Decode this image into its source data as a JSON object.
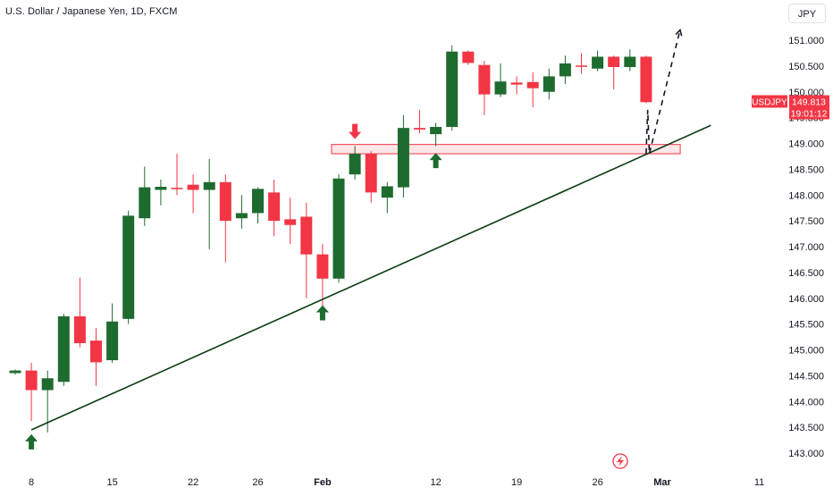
{
  "header": {
    "title": "U.S. Dollar / Japanese Yen, 1D, FXCM",
    "currency_button": "JPY"
  },
  "price_tag": {
    "symbol": "USDJPY",
    "price": "149.813",
    "countdown": "19:01:12",
    "value": 149.813
  },
  "colors": {
    "up": "#1e6b2f",
    "down": "#f23645",
    "trendline": "#0b3d14",
    "zone": "#f23645",
    "arrow_up": "#1e6b2f",
    "arrow_down": "#f23645",
    "axis_text": "#131722"
  },
  "chart_data": {
    "type": "candlestick",
    "title": "U.S. Dollar / Japanese Yen, 1D, FXCM",
    "xlabel": "",
    "ylabel": "",
    "ylim": [
      142.9,
      151.55
    ],
    "grid": false,
    "y_ticks": [
      "151.000",
      "150.500",
      "150.000",
      "149.500",
      "149.000",
      "148.500",
      "148.000",
      "147.500",
      "147.000",
      "146.500",
      "146.000",
      "145.500",
      "145.000",
      "144.500",
      "144.000",
      "143.500",
      "143.000"
    ],
    "x_ticks": [
      {
        "label": "8",
        "index": 1
      },
      {
        "label": "15",
        "index": 6
      },
      {
        "label": "22",
        "index": 11
      },
      {
        "label": "26",
        "index": 15
      },
      {
        "label": "Feb",
        "index": 19
      },
      {
        "label": "12",
        "index": 26
      },
      {
        "label": "19",
        "index": 31
      },
      {
        "label": "26",
        "index": 36
      },
      {
        "label": "Mar",
        "index": 40
      },
      {
        "label": "11",
        "index": 46
      }
    ],
    "candles": [
      {
        "i": 0,
        "o": 144.55,
        "h": 144.62,
        "l": 144.52,
        "c": 144.6
      },
      {
        "i": 1,
        "o": 144.6,
        "h": 144.75,
        "l": 143.62,
        "c": 144.22
      },
      {
        "i": 2,
        "o": 144.22,
        "h": 144.6,
        "l": 143.4,
        "c": 144.45
      },
      {
        "i": 3,
        "o": 144.38,
        "h": 145.7,
        "l": 144.3,
        "c": 145.65
      },
      {
        "i": 4,
        "o": 145.65,
        "h": 146.4,
        "l": 145.05,
        "c": 145.13
      },
      {
        "i": 5,
        "o": 145.18,
        "h": 145.42,
        "l": 144.3,
        "c": 144.76
      },
      {
        "i": 6,
        "o": 144.8,
        "h": 145.9,
        "l": 144.75,
        "c": 145.55
      },
      {
        "i": 7,
        "o": 145.6,
        "h": 147.7,
        "l": 145.5,
        "c": 147.6
      },
      {
        "i": 8,
        "o": 147.55,
        "h": 148.55,
        "l": 147.4,
        "c": 148.15
      },
      {
        "i": 9,
        "o": 148.1,
        "h": 148.3,
        "l": 147.8,
        "c": 148.16
      },
      {
        "i": 10,
        "o": 148.14,
        "h": 148.8,
        "l": 148.0,
        "c": 148.13
      },
      {
        "i": 11,
        "o": 148.2,
        "h": 148.4,
        "l": 147.65,
        "c": 148.1
      },
      {
        "i": 12,
        "o": 148.1,
        "h": 148.7,
        "l": 146.95,
        "c": 148.25
      },
      {
        "i": 13,
        "o": 148.25,
        "h": 148.4,
        "l": 146.7,
        "c": 147.5
      },
      {
        "i": 14,
        "o": 147.55,
        "h": 148.0,
        "l": 147.35,
        "c": 147.65
      },
      {
        "i": 15,
        "o": 147.65,
        "h": 148.15,
        "l": 147.45,
        "c": 148.12
      },
      {
        "i": 16,
        "o": 148.05,
        "h": 148.3,
        "l": 147.2,
        "c": 147.5
      },
      {
        "i": 17,
        "o": 147.53,
        "h": 147.95,
        "l": 147.05,
        "c": 147.42
      },
      {
        "i": 18,
        "o": 147.58,
        "h": 147.85,
        "l": 146.0,
        "c": 146.85
      },
      {
        "i": 19,
        "o": 146.85,
        "h": 147.05,
        "l": 145.85,
        "c": 146.38
      },
      {
        "i": 20,
        "o": 146.38,
        "h": 148.4,
        "l": 146.3,
        "c": 148.32
      },
      {
        "i": 21,
        "o": 148.4,
        "h": 148.95,
        "l": 148.3,
        "c": 148.8
      },
      {
        "i": 22,
        "o": 148.8,
        "h": 148.85,
        "l": 147.85,
        "c": 148.05
      },
      {
        "i": 23,
        "o": 147.95,
        "h": 148.25,
        "l": 147.65,
        "c": 148.17
      },
      {
        "i": 24,
        "o": 148.15,
        "h": 149.55,
        "l": 147.95,
        "c": 149.3
      },
      {
        "i": 25,
        "o": 149.3,
        "h": 149.65,
        "l": 149.2,
        "c": 149.27
      },
      {
        "i": 26,
        "o": 149.18,
        "h": 149.4,
        "l": 148.95,
        "c": 149.32
      },
      {
        "i": 27,
        "o": 149.32,
        "h": 150.9,
        "l": 149.25,
        "c": 150.78
      },
      {
        "i": 28,
        "o": 150.78,
        "h": 150.8,
        "l": 150.52,
        "c": 150.56
      },
      {
        "i": 29,
        "o": 150.52,
        "h": 150.6,
        "l": 149.55,
        "c": 149.95
      },
      {
        "i": 30,
        "o": 149.95,
        "h": 150.55,
        "l": 149.9,
        "c": 150.2
      },
      {
        "i": 31,
        "o": 150.18,
        "h": 150.3,
        "l": 149.95,
        "c": 150.14
      },
      {
        "i": 32,
        "o": 150.19,
        "h": 150.38,
        "l": 149.7,
        "c": 150.07
      },
      {
        "i": 33,
        "o": 150.0,
        "h": 150.45,
        "l": 149.85,
        "c": 150.3
      },
      {
        "i": 34,
        "o": 150.3,
        "h": 150.7,
        "l": 150.15,
        "c": 150.55
      },
      {
        "i": 35,
        "o": 150.51,
        "h": 150.75,
        "l": 150.35,
        "c": 150.49
      },
      {
        "i": 36,
        "o": 150.45,
        "h": 150.8,
        "l": 150.4,
        "c": 150.68
      },
      {
        "i": 37,
        "o": 150.68,
        "h": 150.7,
        "l": 150.05,
        "c": 150.48
      },
      {
        "i": 38,
        "o": 150.48,
        "h": 150.82,
        "l": 150.4,
        "c": 150.68
      },
      {
        "i": 39,
        "o": 150.68,
        "h": 150.7,
        "l": 149.78,
        "c": 149.8
      }
    ],
    "annotations": {
      "trendline": {
        "from": {
          "index": 1,
          "value": 143.45
        },
        "to": {
          "index": 43,
          "value": 149.35
        }
      },
      "zone": {
        "from_index": 20,
        "to_index": 41,
        "top": 148.98,
        "bottom": 148.8
      },
      "projection": [
        {
          "index": 39,
          "value": 148.8
        },
        {
          "index": 39.1,
          "value": 149.65
        },
        {
          "index": 39.2,
          "value": 148.8
        },
        {
          "index": 41.1,
          "value": 151.2
        }
      ],
      "arrows_up": [
        {
          "index": 1,
          "value": 143.4
        },
        {
          "index": 19,
          "value": 145.9
        },
        {
          "index": 26,
          "value": 148.85
        }
      ],
      "arrows_down": [
        {
          "index": 21,
          "value": 149.05
        }
      ]
    }
  }
}
